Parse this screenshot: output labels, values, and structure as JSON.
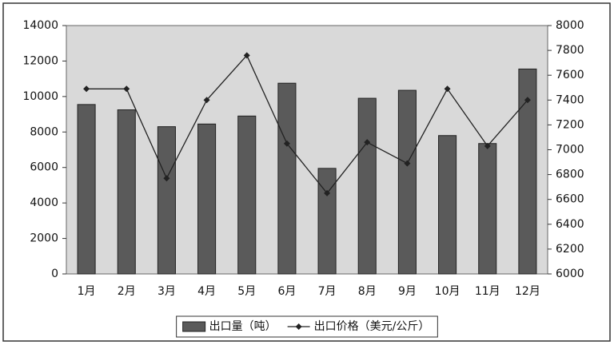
{
  "chart_data": {
    "type": "bar",
    "categories": [
      "1月",
      "2月",
      "3月",
      "4月",
      "5月",
      "6月",
      "7月",
      "8月",
      "9月",
      "10月",
      "11月",
      "12月"
    ],
    "series": [
      {
        "name": "出口量（吨）",
        "type": "bar",
        "color": "#5a5a5a",
        "values": [
          9550,
          9250,
          8300,
          8450,
          8900,
          10750,
          5950,
          9900,
          10350,
          7800,
          7350,
          11550
        ]
      },
      {
        "name": "出口价格（美元/公斤）",
        "type": "line",
        "axis": "y2",
        "color": "#222222",
        "values": [
          7490,
          7490,
          6770,
          7400,
          7760,
          7050,
          6650,
          7060,
          6890,
          7490,
          7030,
          7400
        ]
      }
    ],
    "ylim": [
      0,
      14000
    ],
    "yticks": [
      0,
      2000,
      4000,
      6000,
      8000,
      10000,
      12000,
      14000
    ],
    "y2lim": [
      6000,
      8000
    ],
    "y2ticks": [
      6000,
      6200,
      6400,
      6600,
      6800,
      7000,
      7200,
      7400,
      7600,
      7800,
      8000
    ],
    "legend": "bottom"
  }
}
